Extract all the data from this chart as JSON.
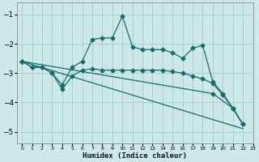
{
  "xlabel": "Humidex (Indice chaleur)",
  "bg_color": "#cce8e8",
  "grid_color": "#aacfcf",
  "line_color": "#1a6b6b",
  "xlim": [
    -0.5,
    23
  ],
  "ylim": [
    -5.4,
    -0.6
  ],
  "yticks": [
    -5,
    -4,
    -3,
    -2,
    -1
  ],
  "xticks": [
    0,
    1,
    2,
    3,
    4,
    5,
    6,
    7,
    8,
    9,
    10,
    11,
    12,
    13,
    14,
    15,
    16,
    17,
    18,
    19,
    20,
    21,
    22,
    23
  ],
  "series1_x": [
    0,
    1,
    2,
    3,
    4,
    5,
    6,
    7,
    8,
    9,
    10,
    11,
    12,
    13,
    14,
    15,
    16,
    17,
    18,
    19,
    20,
    21,
    22
  ],
  "series1_y": [
    -2.6,
    -2.8,
    -2.8,
    -3.0,
    -3.4,
    -2.8,
    -2.6,
    -1.85,
    -1.8,
    -1.8,
    -1.05,
    -2.1,
    -2.2,
    -2.2,
    -2.2,
    -2.3,
    -2.5,
    -2.15,
    -2.05,
    -3.3,
    -3.7,
    -4.2,
    -4.75
  ],
  "series2_x": [
    0,
    1,
    2,
    3,
    4,
    5,
    6,
    7,
    8,
    9,
    10,
    11,
    12,
    13,
    14,
    15,
    16,
    17,
    18,
    19,
    20,
    21,
    22
  ],
  "series2_y": [
    -2.6,
    -2.8,
    -2.8,
    -3.0,
    -3.55,
    -3.1,
    -2.9,
    -2.85,
    -2.9,
    -2.9,
    -2.9,
    -2.9,
    -2.9,
    -2.9,
    -2.9,
    -2.95,
    -3.0,
    -3.1,
    -3.2,
    -3.35,
    -3.75,
    -4.2,
    -4.75
  ],
  "series3_x": [
    0,
    19,
    21,
    22
  ],
  "series3_y": [
    -2.6,
    -3.7,
    -4.2,
    -4.75
  ],
  "series4_x": [
    0,
    22
  ],
  "series4_y": [
    -2.6,
    -4.9
  ]
}
